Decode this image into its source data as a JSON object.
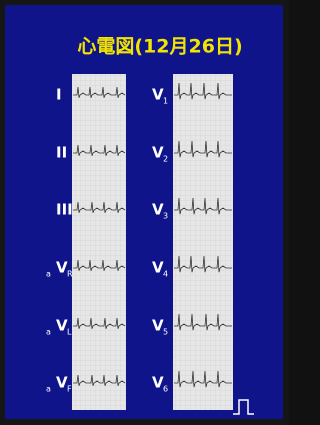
{
  "title": "心電図(12月26日)",
  "leads": {
    "left": [
      {
        "main": "I"
      },
      {
        "main": "II"
      },
      {
        "main": "III"
      },
      {
        "prefix": "a",
        "main": "V",
        "sub": "R"
      },
      {
        "prefix": "a",
        "main": "V",
        "sub": "L"
      },
      {
        "prefix": "a",
        "main": "V",
        "sub": "F"
      }
    ],
    "right": [
      {
        "main": "V",
        "sub": "1"
      },
      {
        "main": "V",
        "sub": "2"
      },
      {
        "main": "V",
        "sub": "3"
      },
      {
        "main": "V",
        "sub": "4"
      },
      {
        "main": "V",
        "sub": "5"
      },
      {
        "main": "V",
        "sub": "6"
      }
    ]
  }
}
